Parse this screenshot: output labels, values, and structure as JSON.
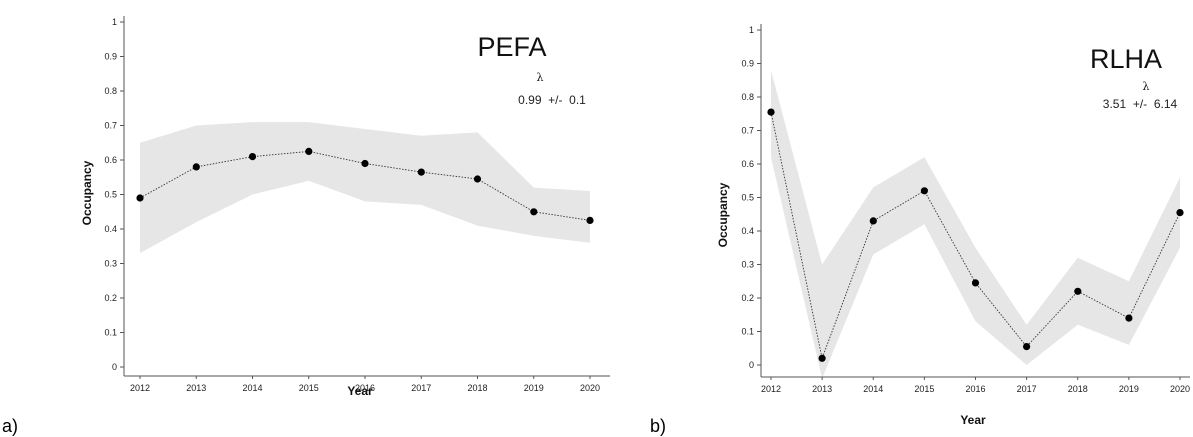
{
  "chart_data": [
    {
      "type": "line",
      "panel_label": "a)",
      "title": "PEFA",
      "lambda_symbol": "λ",
      "lambda_text": "0.99  +/-  0.1",
      "xlabel": "Year",
      "ylabel": "Occupancy",
      "x": [
        2012,
        2013,
        2014,
        2015,
        2016,
        2017,
        2018,
        2019,
        2020
      ],
      "x_tick_labels": [
        "2012",
        "2013",
        "2014",
        "2015",
        "2016",
        "2017",
        "2018",
        "2019",
        "2020"
      ],
      "y_tick_labels": [
        "0",
        "0.1",
        "0.2",
        "0.3",
        "0.4",
        "0.5",
        "0.6",
        "0.7",
        "0.8",
        "0.9",
        "1"
      ],
      "ylim": [
        0,
        1
      ],
      "series": [
        {
          "values": [
            0.49,
            0.58,
            0.61,
            0.625,
            0.59,
            0.565,
            0.545,
            0.45,
            0.425
          ],
          "lower": [
            0.33,
            0.42,
            0.5,
            0.54,
            0.48,
            0.47,
            0.41,
            0.38,
            0.36
          ],
          "upper": [
            0.65,
            0.7,
            0.71,
            0.71,
            0.69,
            0.67,
            0.68,
            0.52,
            0.51
          ]
        }
      ],
      "grid": false
    },
    {
      "type": "line",
      "panel_label": "b)",
      "title": "RLHA",
      "lambda_symbol": "λ",
      "lambda_text": "3.51  +/-  6.14",
      "xlabel": "Year",
      "ylabel": "Occupancy",
      "x": [
        2012,
        2013,
        2014,
        2015,
        2016,
        2017,
        2018,
        2019,
        2020
      ],
      "x_tick_labels": [
        "2012",
        "2013",
        "2014",
        "2015",
        "2016",
        "2017",
        "2018",
        "2019",
        "2020"
      ],
      "y_tick_labels": [
        "0",
        "0.1",
        "0.2",
        "0.3",
        "0.4",
        "0.5",
        "0.6",
        "0.7",
        "0.8",
        "0.9",
        "1"
      ],
      "ylim": [
        0,
        1
      ],
      "series": [
        {
          "values": [
            0.755,
            0.02,
            0.43,
            0.52,
            0.245,
            0.055,
            0.22,
            0.14,
            0.455
          ],
          "lower": [
            0.62,
            -0.1,
            0.33,
            0.42,
            0.13,
            0.0,
            0.12,
            0.06,
            0.35
          ],
          "upper": [
            0.88,
            0.3,
            0.53,
            0.62,
            0.35,
            0.12,
            0.32,
            0.25,
            0.56
          ]
        }
      ],
      "grid": false
    }
  ]
}
